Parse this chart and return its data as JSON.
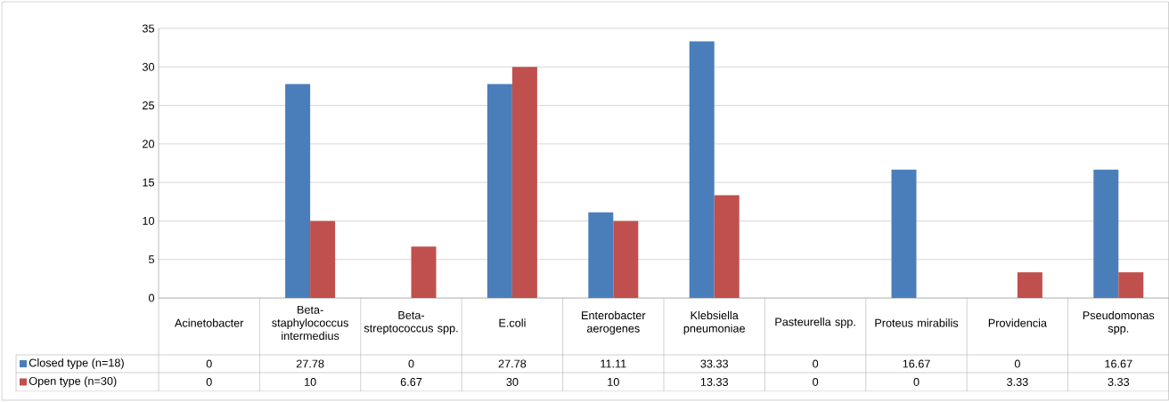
{
  "chart_data": {
    "type": "bar",
    "categories": [
      "Acinetobacter",
      "Beta-staphylococcus intermedius",
      "Beta-streptococcus spp.",
      "E.coli",
      "Enterobacter aerogenes",
      "Klebsiella pneumoniae",
      "Pasteurella spp.",
      "Proteus mirabilis",
      "Providencia",
      "Pseudomonas spp."
    ],
    "series": [
      {
        "name": "Closed type (n=18)",
        "color": "#4a7ebb",
        "values": [
          0,
          27.78,
          0,
          27.78,
          11.11,
          33.33,
          0,
          16.67,
          0,
          16.67
        ]
      },
      {
        "name": "Open type (n=30)",
        "color": "#c0504d",
        "values": [
          0,
          10,
          6.67,
          30,
          10,
          13.33,
          0,
          0,
          3.33,
          3.33
        ]
      }
    ],
    "ylim": [
      0,
      35
    ],
    "yticks": [
      0,
      5,
      10,
      15,
      20,
      25,
      30,
      35
    ],
    "grid": "y",
    "legend": "left",
    "data_labels": true
  }
}
